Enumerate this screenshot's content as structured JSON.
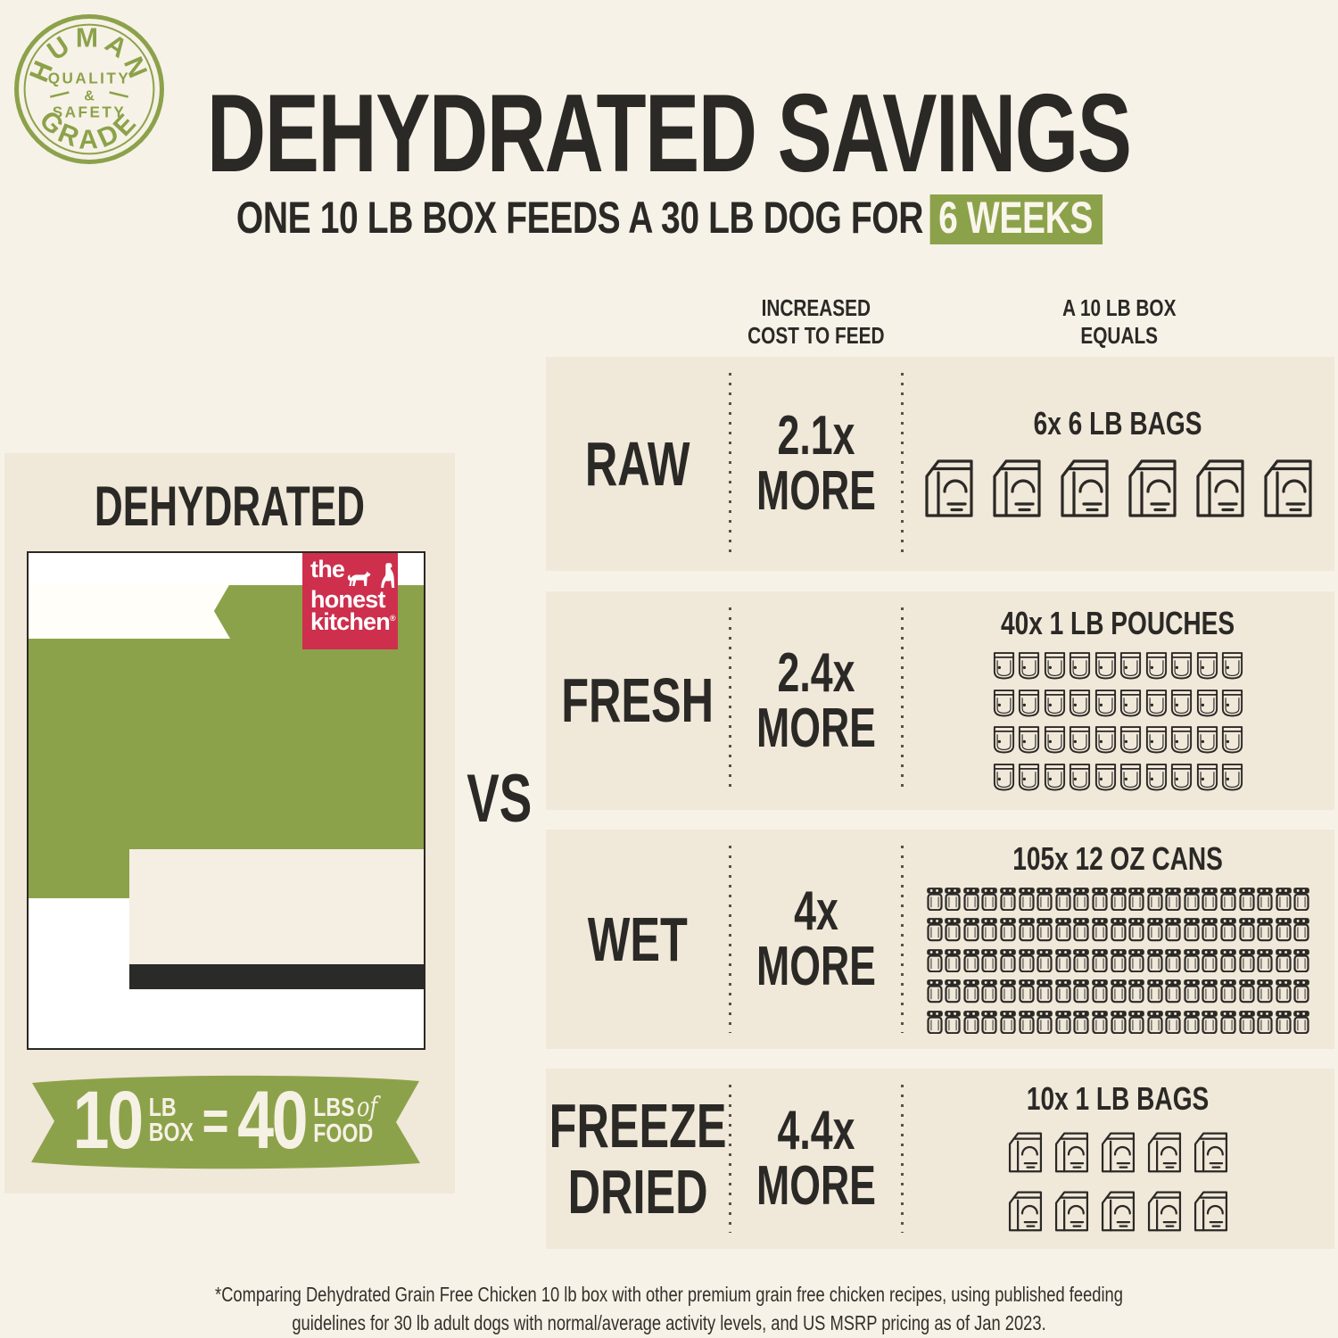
{
  "badge": {
    "word_top": "HUMAN",
    "word_bottom": "GRADE",
    "mid_line1": "QUALITY",
    "mid_amp": "&",
    "mid_line2": "SAFETY"
  },
  "header": {
    "title": "DEHYDRATED SAVINGS",
    "subtitle_prefix": "ONE 10 LB BOX FEEDS A 30 LB DOG FOR",
    "subtitle_highlight": "6 WEEKS"
  },
  "left_panel": {
    "title": "DEHYDRATED",
    "logo": {
      "line1": "the",
      "line2": "honest",
      "line3": "kitchen",
      "reg": "®"
    },
    "ribbon": {
      "big1": "10",
      "unit1_top": "LB",
      "unit1_bottom": "BOX",
      "equals": "=",
      "big2": "40",
      "unit2_top": "LBS",
      "unit2_of": "of",
      "unit2_bottom": "FOOD"
    }
  },
  "vs_label": "VS",
  "comparison": {
    "header_cost": "INCREASED\nCOST TO FEED",
    "header_equals": "A 10 LB BOX\nEQUALS",
    "rows": [
      {
        "label": "RAW",
        "cost": "2.1x\nMORE",
        "icons_title": "6x 6 LB BAGS",
        "icon": "bag",
        "count": 6,
        "per_row": 6
      },
      {
        "label": "FRESH",
        "cost": "2.4x\nMORE",
        "icons_title": "40x 1 LB POUCHES",
        "icon": "pouch",
        "count": 40,
        "per_row": 10
      },
      {
        "label": "WET",
        "cost": "4x\nMORE",
        "icons_title": "105x 12 OZ CANS",
        "icon": "can",
        "count": 105,
        "per_row": 21
      },
      {
        "label": "FREEZE\nDRIED",
        "cost": "4.4x\nMORE",
        "icons_title": "10x 1 LB BAGS",
        "icon": "bag",
        "count": 10,
        "per_row": 5
      }
    ]
  },
  "footnote": "*Comparing Dehydrated Grain Free Chicken 10 lb box with other premium grain free chicken recipes, using published feeding guidelines for 30 lb adult dogs with normal/average activity levels, and US MSRP pricing as of Jan 2023.",
  "colors": {
    "green": "#8ca24a",
    "red": "#ce2f4d",
    "ink": "#2b2926",
    "page_bg": "#f7f2e8",
    "card_bg": "#f0e8d9"
  },
  "chart_data": {
    "type": "table",
    "title": "DEHYDRATED SAVINGS",
    "subtitle": "ONE 10 LB BOX FEEDS A 30 LB DOG FOR 6 WEEKS",
    "baseline": "DEHYDRATED: 10 LB BOX = 40 LBS OF FOOD",
    "categories": [
      "RAW",
      "FRESH",
      "WET",
      "FREEZE DRIED"
    ],
    "series": [
      {
        "name": "Increased cost to feed (multiplier)",
        "values": [
          2.1,
          2.4,
          4,
          4.4
        ]
      },
      {
        "name": "A 10 lb box equals (count)",
        "values": [
          6,
          40,
          105,
          10
        ]
      },
      {
        "name": "A 10 lb box equals (unit)",
        "values": [
          "6 LB BAGS",
          "1 LB POUCHES",
          "12 OZ CANS",
          "1 LB BAGS"
        ]
      }
    ],
    "legend_position": "none",
    "grid": false
  }
}
